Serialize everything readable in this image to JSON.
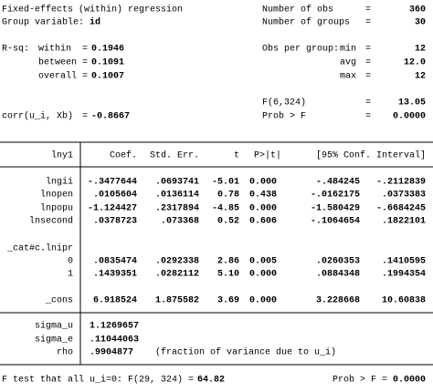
{
  "header": {
    "title": "Fixed-effects (within) regression",
    "group_label": "Group variable:",
    "group_var": "id",
    "eq": "=",
    "stats": [
      {
        "label": "Number of obs",
        "value": "360"
      },
      {
        "label": "Number of groups",
        "value": "30"
      }
    ],
    "rsq_label": "R-sq:",
    "rsq": [
      {
        "label": "within",
        "value": "0.1946"
      },
      {
        "label": "between",
        "value": "0.1091"
      },
      {
        "label": "overall",
        "value": "0.1007"
      }
    ],
    "obs_label": "Obs per group:",
    "obs": [
      {
        "label": "min",
        "value": "12"
      },
      {
        "label": "avg",
        "value": "12.0"
      },
      {
        "label": "max",
        "value": "12"
      }
    ],
    "f_stat": {
      "label": "F(6,324)",
      "value": "13.05"
    },
    "corr": {
      "label": "corr(u_i, Xb)",
      "value": "-0.8667"
    },
    "prob_f": {
      "label": "Prob > F",
      "value": "0.0000"
    }
  },
  "table": {
    "depvar": "lny1",
    "columns": [
      "Coef.",
      "Std. Err.",
      "t",
      "P>|t|",
      "[95% Conf. Interval]"
    ],
    "rows": [
      [
        "lngii",
        "-.3477644",
        ".0693741",
        "-5.01",
        "0.000",
        "-.484245",
        "-.2112839"
      ],
      [
        "lnopen",
        ".0105604",
        ".0136114",
        "0.78",
        "0.438",
        "-.0162175",
        ".0373383"
      ],
      [
        "lnpopu",
        "-1.124427",
        ".2317894",
        "-4.85",
        "0.000",
        "-1.580429",
        "-.6684245"
      ],
      [
        "lnsecond",
        ".0378723",
        ".073368",
        "0.52",
        "0.606",
        "-.1064654",
        ".1822101"
      ]
    ],
    "group": "_cat#c.lnipr",
    "group_rows": [
      [
        "0",
        ".0835474",
        ".0292338",
        "2.86",
        "0.005",
        ".0260353",
        ".1410595"
      ],
      [
        "1",
        ".1439351",
        ".0282112",
        "5.10",
        "0.000",
        ".0884348",
        ".1994354"
      ]
    ],
    "cons": [
      "_cons",
      "6.918524",
      "1.875582",
      "3.69",
      "0.000",
      "3.228668",
      "10.60838"
    ]
  },
  "sigma": [
    {
      "label": "sigma_u",
      "value": "1.1269657"
    },
    {
      "label": "sigma_e",
      "value": ".11044063"
    },
    {
      "label": "rho",
      "value": ".9904877",
      "note": "(fraction of variance due to u_i)"
    }
  ],
  "footer": {
    "test": "F test that all u_i=0: F(29, 324) =",
    "test_value": "64.82",
    "prob_label": "Prob > F",
    "prob_value": "0.0000"
  }
}
